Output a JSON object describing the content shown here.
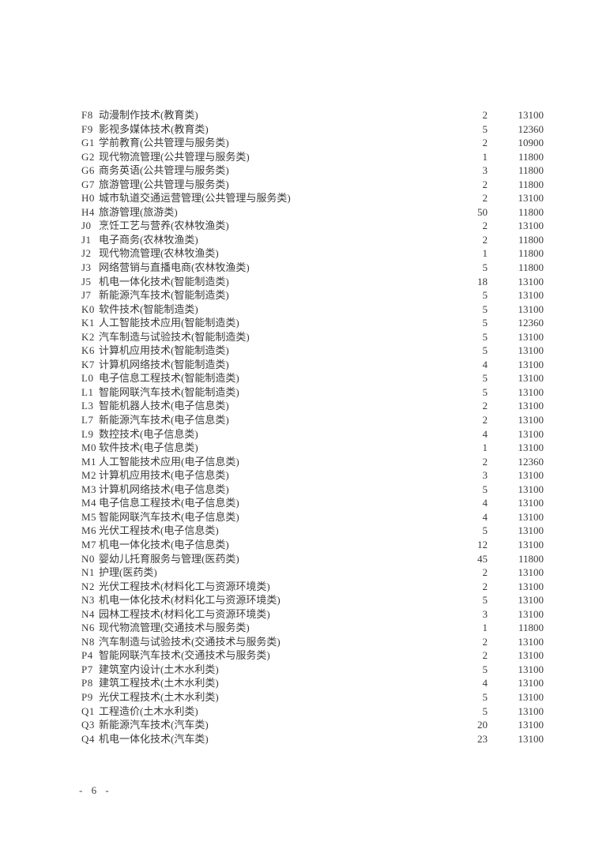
{
  "page_number": "- 6 -",
  "colors": {
    "text": "#3a3a3a",
    "background": "#ffffff"
  },
  "table": {
    "rows": [
      {
        "code": "F8",
        "name": "动漫制作技术(教育类)",
        "count": "2",
        "fee": "13100"
      },
      {
        "code": "F9",
        "name": "影视多媒体技术(教育类)",
        "count": "5",
        "fee": "12360"
      },
      {
        "code": "G1",
        "name": "学前教育(公共管理与服务类)",
        "count": "2",
        "fee": "10900"
      },
      {
        "code": "G2",
        "name": "现代物流管理(公共管理与服务类)",
        "count": "1",
        "fee": "11800"
      },
      {
        "code": "G6",
        "name": "商务英语(公共管理与服务类)",
        "count": "3",
        "fee": "11800"
      },
      {
        "code": "G7",
        "name": "旅游管理(公共管理与服务类)",
        "count": "2",
        "fee": "11800"
      },
      {
        "code": "H0",
        "name": "城市轨道交通运营管理(公共管理与服务类)",
        "count": "2",
        "fee": "13100"
      },
      {
        "code": "H4",
        "name": "旅游管理(旅游类)",
        "count": "50",
        "fee": "11800"
      },
      {
        "code": "J0",
        "name": "烹饪工艺与营养(农林牧渔类)",
        "count": "2",
        "fee": "13100"
      },
      {
        "code": "J1",
        "name": "电子商务(农林牧渔类)",
        "count": "2",
        "fee": "11800"
      },
      {
        "code": "J2",
        "name": "现代物流管理(农林牧渔类)",
        "count": "1",
        "fee": "11800"
      },
      {
        "code": "J3",
        "name": "网络营销与直播电商(农林牧渔类)",
        "count": "5",
        "fee": "11800"
      },
      {
        "code": "J5",
        "name": "机电一体化技术(智能制造类)",
        "count": "18",
        "fee": "13100"
      },
      {
        "code": "J7",
        "name": "新能源汽车技术(智能制造类)",
        "count": "5",
        "fee": "13100"
      },
      {
        "code": "K0",
        "name": "软件技术(智能制造类)",
        "count": "5",
        "fee": "13100"
      },
      {
        "code": "K1",
        "name": "人工智能技术应用(智能制造类)",
        "count": "5",
        "fee": "12360"
      },
      {
        "code": "K2",
        "name": "汽车制造与试验技术(智能制造类)",
        "count": "5",
        "fee": "13100"
      },
      {
        "code": "K6",
        "name": "计算机应用技术(智能制造类)",
        "count": "5",
        "fee": "13100"
      },
      {
        "code": "K7",
        "name": "计算机网络技术(智能制造类)",
        "count": "4",
        "fee": "13100"
      },
      {
        "code": "L0",
        "name": "电子信息工程技术(智能制造类)",
        "count": "5",
        "fee": "13100"
      },
      {
        "code": "L1",
        "name": "智能网联汽车技术(智能制造类)",
        "count": "5",
        "fee": "13100"
      },
      {
        "code": "L3",
        "name": "智能机器人技术(电子信息类)",
        "count": "2",
        "fee": "13100"
      },
      {
        "code": "L7",
        "name": "新能源汽车技术(电子信息类)",
        "count": "2",
        "fee": "13100"
      },
      {
        "code": "L9",
        "name": "数控技术(电子信息类)",
        "count": "4",
        "fee": "13100"
      },
      {
        "code": "M0",
        "name": "软件技术(电子信息类)",
        "count": "1",
        "fee": "13100"
      },
      {
        "code": "M1",
        "name": "人工智能技术应用(电子信息类)",
        "count": "2",
        "fee": "12360"
      },
      {
        "code": "M2",
        "name": "计算机应用技术(电子信息类)",
        "count": "3",
        "fee": "13100"
      },
      {
        "code": "M3",
        "name": "计算机网络技术(电子信息类)",
        "count": "5",
        "fee": "13100"
      },
      {
        "code": "M4",
        "name": "电子信息工程技术(电子信息类)",
        "count": "4",
        "fee": "13100"
      },
      {
        "code": "M5",
        "name": "智能网联汽车技术(电子信息类)",
        "count": "4",
        "fee": "13100"
      },
      {
        "code": "M6",
        "name": "光伏工程技术(电子信息类)",
        "count": "5",
        "fee": "13100"
      },
      {
        "code": "M7",
        "name": "机电一体化技术(电子信息类)",
        "count": "12",
        "fee": "13100"
      },
      {
        "code": "N0",
        "name": "婴幼儿托育服务与管理(医药类)",
        "count": "45",
        "fee": "11800"
      },
      {
        "code": "N1",
        "name": "护理(医药类)",
        "count": "2",
        "fee": "13100"
      },
      {
        "code": "N2",
        "name": "光伏工程技术(材料化工与资源环境类)",
        "count": "2",
        "fee": "13100"
      },
      {
        "code": "N3",
        "name": "机电一体化技术(材料化工与资源环境类)",
        "count": "5",
        "fee": "13100"
      },
      {
        "code": "N4",
        "name": "园林工程技术(材料化工与资源环境类)",
        "count": "3",
        "fee": "13100"
      },
      {
        "code": "N6",
        "name": "现代物流管理(交通技术与服务类)",
        "count": "1",
        "fee": "11800"
      },
      {
        "code": "N8",
        "name": "汽车制造与试验技术(交通技术与服务类)",
        "count": "2",
        "fee": "13100"
      },
      {
        "code": "P4",
        "name": "智能网联汽车技术(交通技术与服务类)",
        "count": "2",
        "fee": "13100"
      },
      {
        "code": "P7",
        "name": "建筑室内设计(土木水利类)",
        "count": "5",
        "fee": "13100"
      },
      {
        "code": "P8",
        "name": "建筑工程技术(土木水利类)",
        "count": "4",
        "fee": "13100"
      },
      {
        "code": "P9",
        "name": "光伏工程技术(土木水利类)",
        "count": "5",
        "fee": "13100"
      },
      {
        "code": "Q1",
        "name": "工程造价(土木水利类)",
        "count": "5",
        "fee": "13100"
      },
      {
        "code": "Q3",
        "name": "新能源汽车技术(汽车类)",
        "count": "20",
        "fee": "13100"
      },
      {
        "code": "Q4",
        "name": "机电一体化技术(汽车类)",
        "count": "23",
        "fee": "13100"
      }
    ]
  }
}
